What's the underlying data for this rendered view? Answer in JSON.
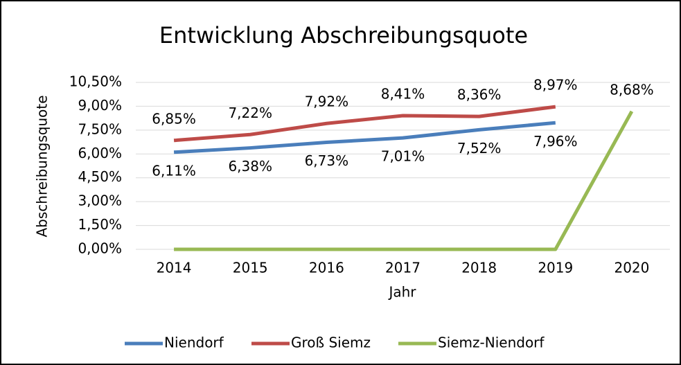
{
  "chart_data": {
    "type": "line",
    "title": "Entwicklung Abschreibungsquote",
    "y_label": "Abschreibungsquote",
    "x_label": "Jahr",
    "categories": [
      "2014",
      "2015",
      "2016",
      "2017",
      "2018",
      "2019",
      "2020"
    ],
    "series": [
      {
        "name": "Niendorf",
        "color": "#4a7ebb",
        "values": [
          6.11,
          6.38,
          6.73,
          7.01,
          7.52,
          7.96,
          null
        ],
        "value_labels": [
          "6,11%",
          "6,38%",
          "6,73%",
          "7,01%",
          "7,52%",
          "7,96%",
          null
        ]
      },
      {
        "name": "Groß Siemz",
        "color": "#be4b48",
        "values": [
          6.85,
          7.22,
          7.92,
          8.41,
          8.36,
          8.97,
          null
        ],
        "value_labels": [
          "6,85%",
          "7,22%",
          "7,92%",
          "8,41%",
          "8,36%",
          "8,97%",
          null
        ]
      },
      {
        "name": "Siemz-Niendorf",
        "color": "#98b954",
        "values": [
          0,
          0,
          0,
          0,
          0,
          0,
          8.68
        ],
        "value_labels": [
          null,
          null,
          null,
          null,
          null,
          null,
          "8,68%"
        ]
      }
    ],
    "ylim": [
      0,
      10.5
    ],
    "yticks": [
      {
        "value": 0,
        "label": "0,00%"
      },
      {
        "value": 1.5,
        "label": "1,50%"
      },
      {
        "value": 3,
        "label": "3,00%"
      },
      {
        "value": 4.5,
        "label": "4,50%"
      },
      {
        "value": 6,
        "label": "6,00%"
      },
      {
        "value": 7.5,
        "label": "7,50%"
      },
      {
        "value": 9,
        "label": "9,00%"
      },
      {
        "value": 10.5,
        "label": "10,50%"
      }
    ],
    "grid": true,
    "legend": "bottom"
  }
}
